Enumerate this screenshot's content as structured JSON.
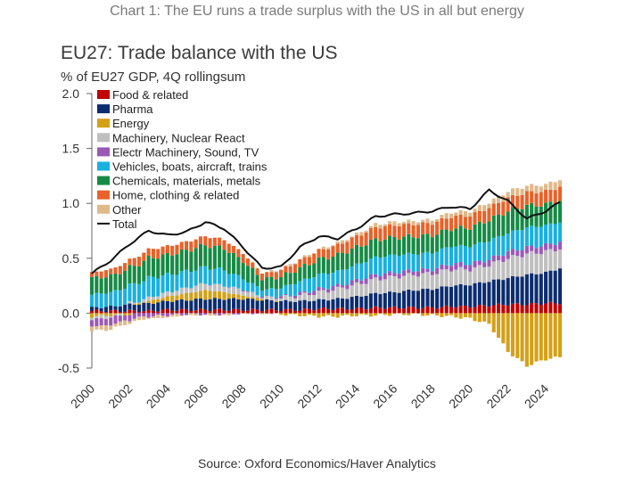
{
  "heading": "Chart 1: The EU runs a trade surplus with the US in all but energy",
  "source": "Source: Oxford Economics/Haver Analytics",
  "chart_data": {
    "type": "stacked-bar-with-line",
    "title": "EU27: Trade balance with the US",
    "subtitle": "% of EU27 GDP, 4Q rollingsum",
    "xlabel": "",
    "ylabel": "% of EU27 GDP",
    "ylim": [
      -0.5,
      2.0
    ],
    "yticks": [
      "2.0",
      "1.5",
      "1.0",
      "0.5",
      "0.0",
      "-0.5"
    ],
    "xticks": [
      "2000",
      "2002",
      "2004",
      "2006",
      "2008",
      "2010",
      "2012",
      "2014",
      "2016",
      "2018",
      "2020",
      "2022",
      "2024"
    ],
    "x_start": 2000.0,
    "x_end": 2024.75,
    "legend_position": "top-left",
    "anchor_years": [
      2000,
      2001,
      2002,
      2003,
      2004,
      2005,
      2006,
      2007,
      2008,
      2009,
      2010,
      2011,
      2012,
      2013,
      2014,
      2015,
      2016,
      2017,
      2018,
      2019,
      2020,
      2021,
      2022,
      2023,
      2024,
      2024.75
    ],
    "series": [
      {
        "name": "Food & related",
        "color": "#c00000",
        "values": [
          0.02,
          0.02,
          0.02,
          0.02,
          0.03,
          0.03,
          0.03,
          0.03,
          0.03,
          0.03,
          0.03,
          0.03,
          0.04,
          0.04,
          0.04,
          0.05,
          0.05,
          0.05,
          0.05,
          0.06,
          0.06,
          0.07,
          0.08,
          0.08,
          0.09,
          0.09
        ]
      },
      {
        "name": "Pharma",
        "color": "#0b2c6e",
        "values": [
          0.03,
          0.04,
          0.06,
          0.07,
          0.08,
          0.09,
          0.1,
          0.1,
          0.1,
          0.09,
          0.08,
          0.08,
          0.08,
          0.09,
          0.11,
          0.13,
          0.14,
          0.16,
          0.17,
          0.19,
          0.2,
          0.22,
          0.24,
          0.27,
          0.28,
          0.32
        ]
      },
      {
        "name": "Energy",
        "color": "#d4a017",
        "values": [
          -0.03,
          -0.02,
          -0.01,
          0.02,
          0.04,
          0.06,
          0.08,
          0.06,
          0.03,
          0.01,
          -0.01,
          -0.02,
          -0.03,
          -0.03,
          -0.02,
          -0.02,
          -0.01,
          -0.01,
          -0.02,
          -0.03,
          -0.05,
          -0.1,
          -0.35,
          -0.48,
          -0.42,
          -0.4
        ]
      },
      {
        "name": "Machinery, Nuclear React",
        "color": "#bfbfbf",
        "values": [
          -0.03,
          -0.02,
          0.01,
          0.03,
          0.04,
          0.05,
          0.06,
          0.06,
          0.05,
          0.02,
          0.03,
          0.05,
          0.07,
          0.09,
          0.11,
          0.13,
          0.14,
          0.14,
          0.14,
          0.15,
          0.14,
          0.15,
          0.18,
          0.19,
          0.19,
          0.18
        ]
      },
      {
        "name": "Electr Machinery, Sound, TV",
        "color": "#9b59b6",
        "values": [
          -0.06,
          -0.07,
          -0.05,
          -0.03,
          -0.02,
          -0.01,
          -0.01,
          -0.01,
          0.0,
          0.0,
          0.01,
          0.02,
          0.03,
          0.03,
          0.04,
          0.04,
          0.04,
          0.04,
          0.04,
          0.05,
          0.05,
          0.05,
          0.06,
          0.06,
          0.06,
          0.06
        ]
      },
      {
        "name": "Vehicles, boats, aircraft, trains",
        "color": "#1ab0e0",
        "values": [
          0.12,
          0.13,
          0.16,
          0.18,
          0.16,
          0.15,
          0.15,
          0.14,
          0.1,
          0.06,
          0.08,
          0.11,
          0.13,
          0.13,
          0.14,
          0.16,
          0.16,
          0.15,
          0.15,
          0.16,
          0.16,
          0.17,
          0.17,
          0.18,
          0.18,
          0.18
        ]
      },
      {
        "name": "Chemicals, materials, metals",
        "color": "#168a45",
        "values": [
          0.15,
          0.15,
          0.16,
          0.18,
          0.18,
          0.19,
          0.2,
          0.2,
          0.16,
          0.1,
          0.1,
          0.12,
          0.14,
          0.15,
          0.16,
          0.16,
          0.16,
          0.16,
          0.16,
          0.16,
          0.17,
          0.19,
          0.2,
          0.2,
          0.19,
          0.2
        ]
      },
      {
        "name": "Home, clothing & related",
        "color": "#e8622a",
        "values": [
          0.05,
          0.06,
          0.07,
          0.08,
          0.08,
          0.08,
          0.08,
          0.08,
          0.07,
          0.05,
          0.06,
          0.07,
          0.08,
          0.09,
          0.1,
          0.11,
          0.11,
          0.11,
          0.11,
          0.11,
          0.11,
          0.11,
          0.12,
          0.12,
          0.12,
          0.12
        ]
      },
      {
        "name": "Other",
        "color": "#e0b98a",
        "values": [
          -0.04,
          -0.04,
          -0.03,
          -0.02,
          -0.02,
          -0.01,
          -0.01,
          -0.01,
          0.0,
          0.0,
          0.01,
          0.01,
          0.01,
          0.02,
          0.02,
          0.03,
          0.03,
          0.03,
          0.03,
          0.04,
          0.04,
          0.05,
          0.06,
          0.06,
          0.06,
          0.07
        ]
      }
    ],
    "total": {
      "name": "Total",
      "color": "#111111",
      "values": [
        0.36,
        0.48,
        0.63,
        0.75,
        0.71,
        0.74,
        0.83,
        0.77,
        0.6,
        0.41,
        0.42,
        0.6,
        0.7,
        0.68,
        0.77,
        0.88,
        0.9,
        0.91,
        0.93,
        0.97,
        0.95,
        1.12,
        1.02,
        0.86,
        0.93,
        1.01
      ]
    }
  }
}
